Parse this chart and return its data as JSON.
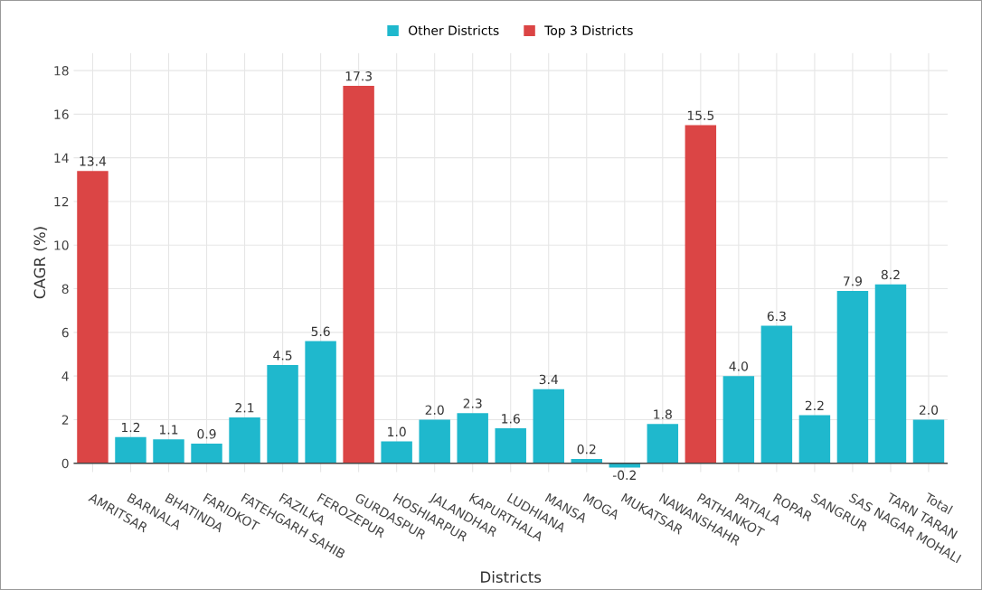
{
  "chart_data": {
    "type": "bar",
    "xlabel": "Districts",
    "ylabel": "CAGR (%)",
    "categories": [
      "AMRITSAR",
      "BARNALA",
      "BHATINDA",
      "FARIDKOT",
      "FATEHGARH SAHIB",
      "FAZILKA",
      "FEROZEPUR",
      "GURDASPUR",
      "HOSHIARPUR",
      "JALANDHAR",
      "KAPURTHALA",
      "LUDHIANA",
      "MANSA",
      "MOGA",
      "MUKATSAR",
      "NAWANSHAHR",
      "PATHANKOT",
      "PATIALA",
      "ROPAR",
      "SANGRUR",
      "SAS NAGAR MOHALI",
      "TARN TARAN",
      "Total"
    ],
    "series": [
      {
        "name": "Other Districts",
        "color": "#1fb8cd",
        "values": [
          null,
          1.2,
          1.1,
          0.9,
          2.1,
          4.5,
          5.6,
          null,
          1.0,
          2.0,
          2.3,
          1.6,
          3.4,
          0.2,
          -0.2,
          1.8,
          null,
          4.0,
          6.3,
          2.2,
          7.9,
          8.2,
          2.0
        ],
        "value_labels": [
          null,
          "1.2",
          "1.1",
          "0.9",
          "2.1",
          "4.5",
          "5.6",
          null,
          "1.0",
          "2.0",
          "2.3",
          "1.6",
          "3.4",
          "0.2",
          "-0.2",
          "1.8",
          null,
          "4.0",
          "6.3",
          "2.2",
          "7.9",
          "8.2",
          "2.0"
        ]
      },
      {
        "name": "Top 3 Districts",
        "color": "#db4545",
        "values": [
          13.4,
          null,
          null,
          null,
          null,
          null,
          null,
          17.3,
          null,
          null,
          null,
          null,
          null,
          null,
          null,
          null,
          15.5,
          null,
          null,
          null,
          null,
          null,
          null
        ],
        "value_labels": [
          "13.4",
          null,
          null,
          null,
          null,
          null,
          null,
          "17.3",
          null,
          null,
          null,
          null,
          null,
          null,
          null,
          null,
          "15.5",
          null,
          null,
          null,
          null,
          null,
          null
        ]
      }
    ],
    "ylim": [
      -0.4,
      18.8
    ],
    "yticks": [
      0,
      2,
      4,
      6,
      8,
      10,
      12,
      14,
      16,
      18
    ],
    "grid": true,
    "legend": "top"
  }
}
